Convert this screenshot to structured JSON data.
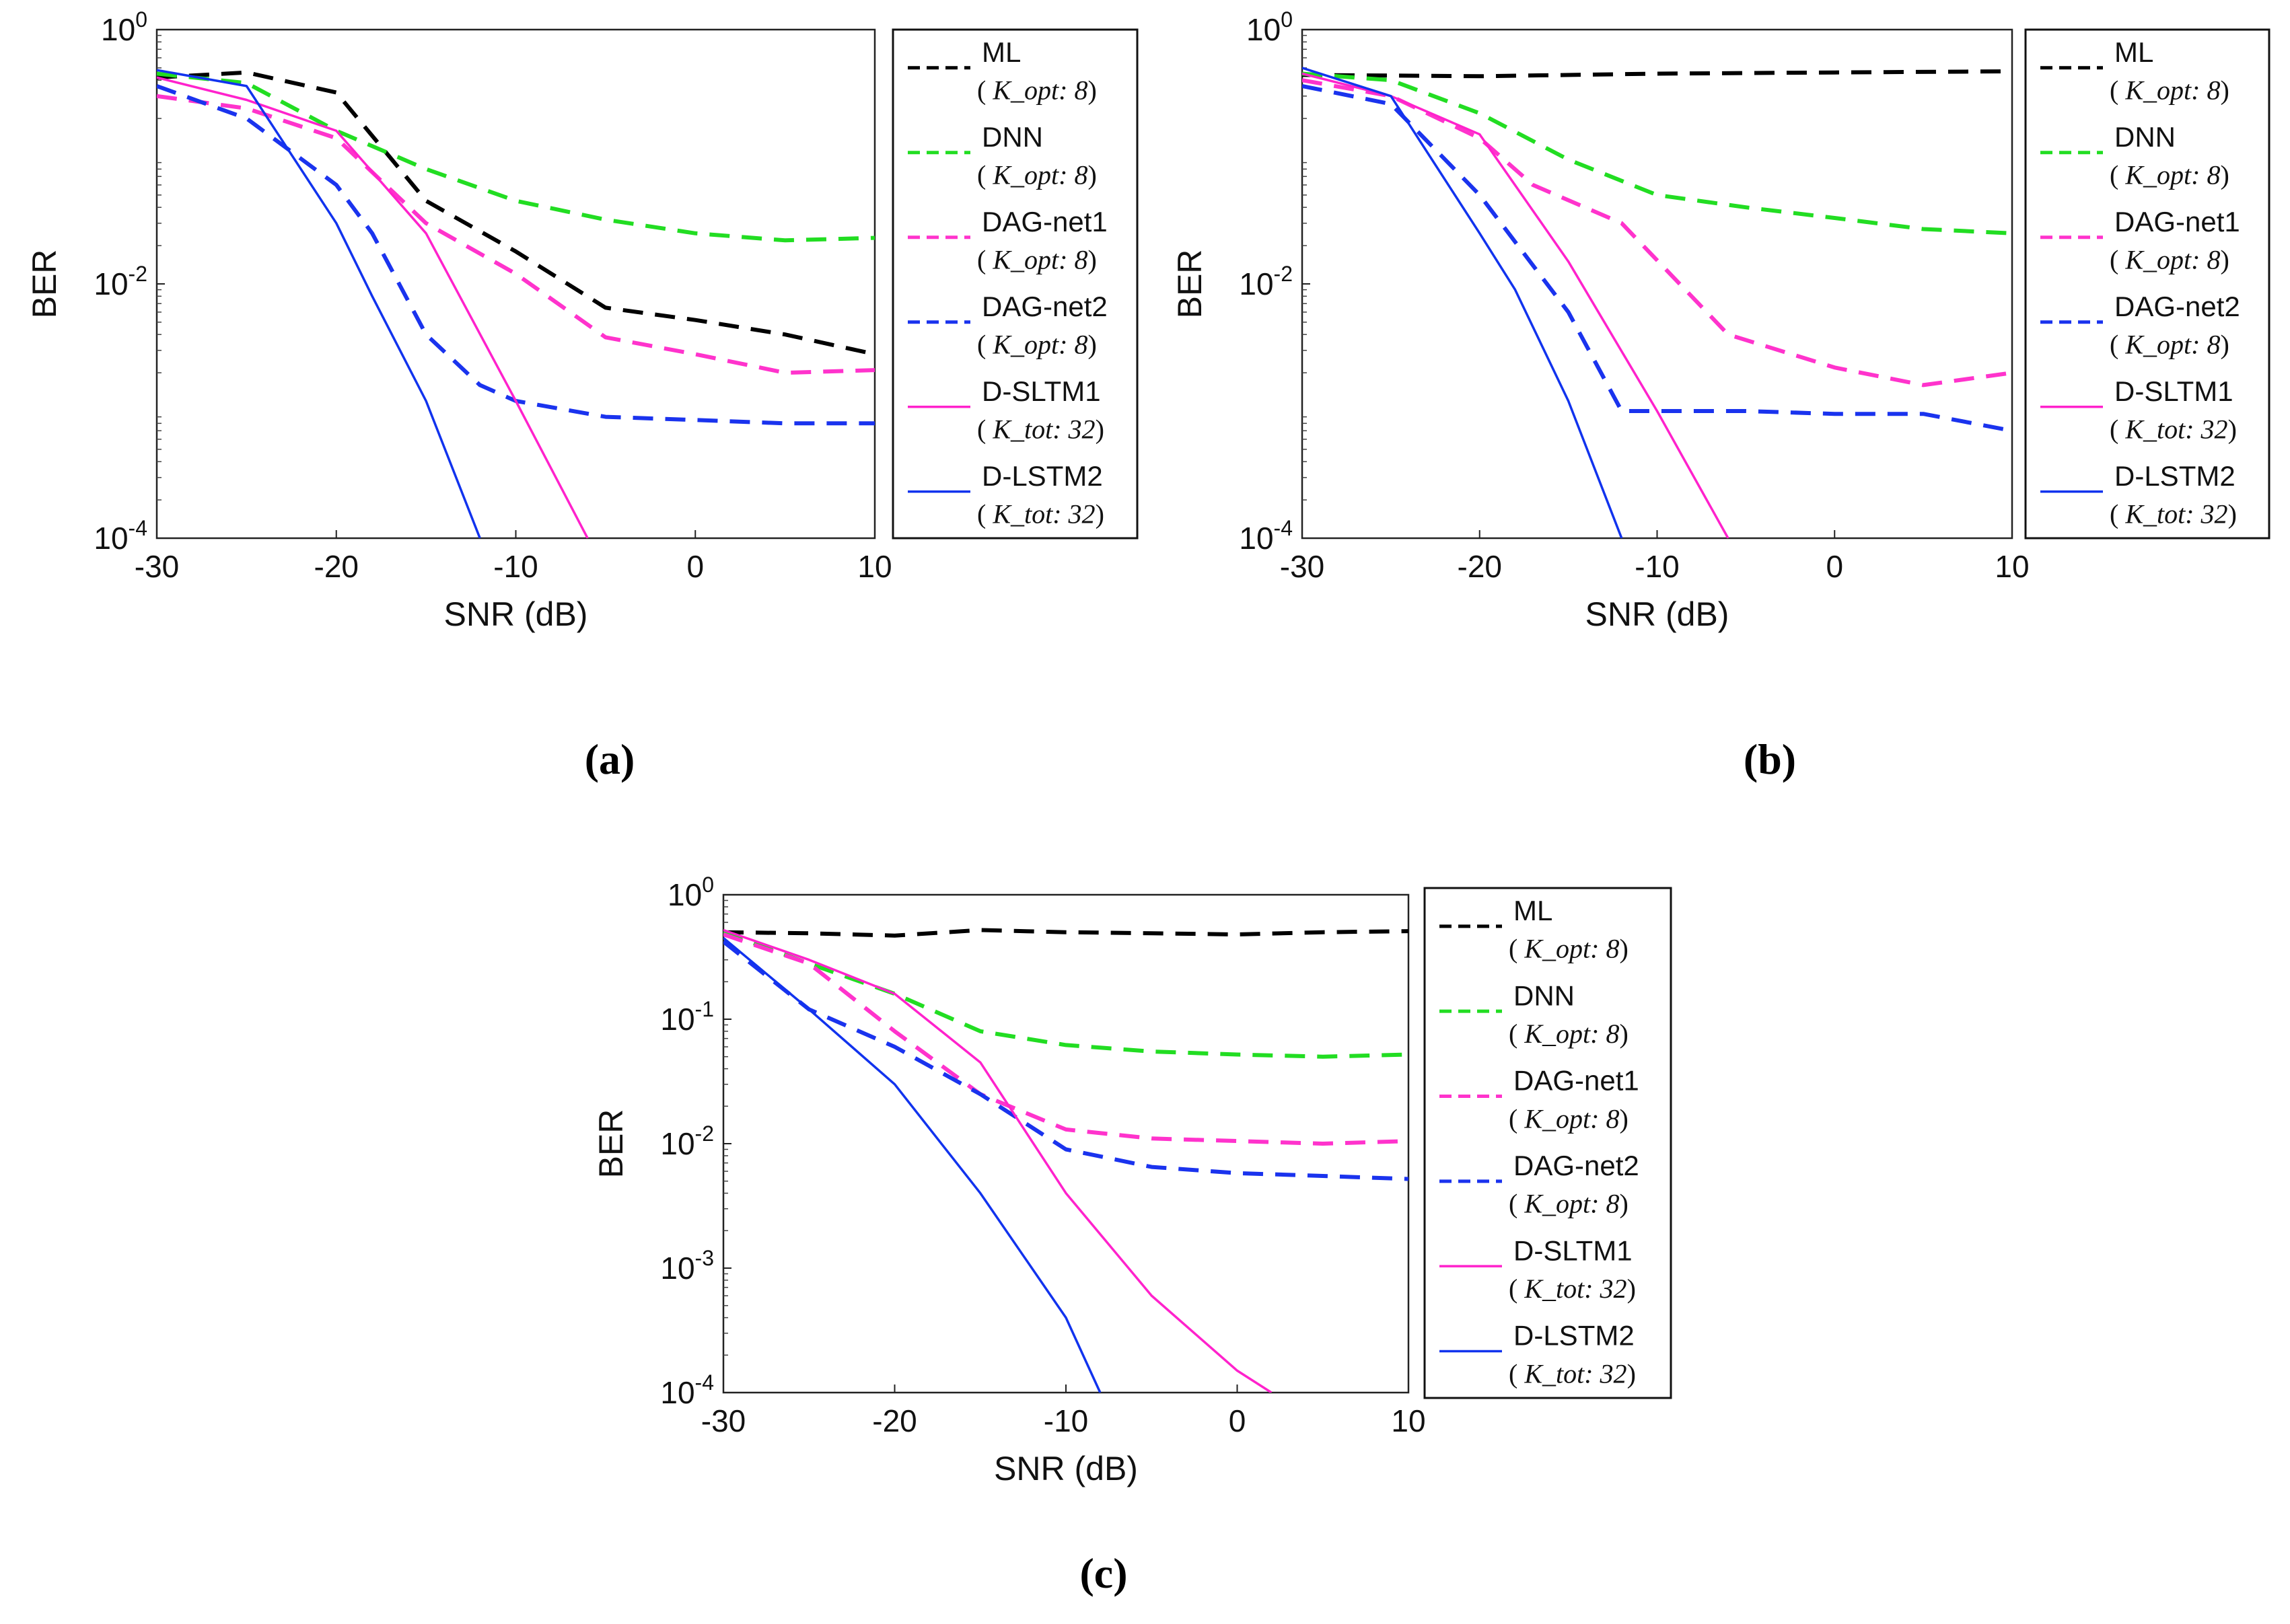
{
  "colors": {
    "ML": "#000000",
    "DNN": "#22dd22",
    "DAG-net1": "#ff33cc",
    "DAG-net2": "#1a33ee",
    "D-SLTM1": "#ff22cc",
    "D-LSTM2": "#1133ee"
  },
  "chart_data": [
    {
      "type": "line",
      "panel_label": "(a)",
      "xlabel": "SNR (dB)",
      "ylabel": "BER",
      "xlim": [
        -30,
        10
      ],
      "ylim": [
        0.0001,
        1
      ],
      "yscale": "log",
      "x_ticks": [
        "-30",
        "-20",
        "-10",
        "0",
        "10"
      ],
      "y_ticks": [
        {
          "base": "10",
          "exp": "0"
        },
        {
          "base": "10",
          "exp": "-2"
        },
        {
          "base": "10",
          "exp": "-4"
        }
      ],
      "legend_position": "outside-right",
      "series": [
        {
          "name": "ML",
          "param": "K_opt: 8",
          "style": "dashed",
          "x": [
            -30,
            -25,
            -20,
            -15,
            -10,
            -5,
            0,
            5,
            10
          ],
          "y": [
            0.42,
            0.46,
            0.32,
            0.045,
            0.018,
            0.0065,
            0.0052,
            0.004,
            0.0028
          ]
        },
        {
          "name": "DNN",
          "param": "K_opt: 8",
          "style": "dashed",
          "x": [
            -30,
            -25,
            -20,
            -15,
            -10,
            -5,
            0,
            5,
            10
          ],
          "y": [
            0.45,
            0.38,
            0.16,
            0.08,
            0.045,
            0.032,
            0.025,
            0.022,
            0.023
          ]
        },
        {
          "name": "DAG-net1",
          "param": "K_opt: 8",
          "style": "dashed",
          "x": [
            -30,
            -25,
            -20,
            -15,
            -10,
            -5,
            0,
            5,
            10
          ],
          "y": [
            0.3,
            0.24,
            0.14,
            0.03,
            0.012,
            0.0038,
            0.0028,
            0.002,
            0.0021
          ]
        },
        {
          "name": "DAG-net2",
          "param": "K_opt: 8",
          "style": "dashed",
          "x": [
            -30,
            -25,
            -20,
            -18,
            -15,
            -12,
            -10,
            -5,
            0,
            5,
            10
          ],
          "y": [
            0.36,
            0.2,
            0.06,
            0.025,
            0.004,
            0.0016,
            0.0012,
            0.0009,
            0.00085,
            0.0008,
            0.0008
          ]
        },
        {
          "name": "D-SLTM1",
          "param": "K_tot: 32",
          "style": "solid",
          "x": [
            -30,
            -25,
            -20,
            -15,
            -10,
            -6
          ],
          "y": [
            0.42,
            0.28,
            0.16,
            0.025,
            0.0012,
            0.0001
          ]
        },
        {
          "name": "D-LSTM2",
          "param": "K_tot: 32",
          "style": "solid",
          "x": [
            -30,
            -25,
            -20,
            -18,
            -15,
            -12
          ],
          "y": [
            0.48,
            0.36,
            0.03,
            0.008,
            0.0012,
            0.0001
          ]
        }
      ]
    },
    {
      "type": "line",
      "panel_label": "(b)",
      "xlabel": "SNR (dB)",
      "ylabel": "BER",
      "xlim": [
        -30,
        10
      ],
      "ylim": [
        0.0001,
        1
      ],
      "yscale": "log",
      "x_ticks": [
        "-30",
        "-20",
        "-10",
        "0",
        "10"
      ],
      "y_ticks": [
        {
          "base": "10",
          "exp": "0"
        },
        {
          "base": "10",
          "exp": "-2"
        },
        {
          "base": "10",
          "exp": "-4"
        }
      ],
      "legend_position": "outside-right",
      "series": [
        {
          "name": "ML",
          "param": "K_opt: 8",
          "style": "dashed",
          "x": [
            -30,
            -20,
            -10,
            0,
            10
          ],
          "y": [
            0.44,
            0.43,
            0.45,
            0.46,
            0.47
          ]
        },
        {
          "name": "DNN",
          "param": "K_opt: 8",
          "style": "dashed",
          "x": [
            -30,
            -25,
            -20,
            -15,
            -10,
            -5,
            0,
            5,
            10
          ],
          "y": [
            0.45,
            0.4,
            0.22,
            0.095,
            0.05,
            0.04,
            0.033,
            0.027,
            0.025
          ]
        },
        {
          "name": "DAG-net1",
          "param": "K_opt: 8",
          "style": "dashed",
          "x": [
            -30,
            -25,
            -20,
            -17,
            -12,
            -6,
            0,
            5,
            10
          ],
          "y": [
            0.4,
            0.3,
            0.14,
            0.06,
            0.03,
            0.004,
            0.0022,
            0.0016,
            0.002
          ]
        },
        {
          "name": "DAG-net2",
          "param": "K_opt: 8",
          "style": "dashed",
          "x": [
            -30,
            -25,
            -20,
            -15,
            -12,
            -10,
            -5,
            0,
            5,
            10
          ],
          "y": [
            0.36,
            0.26,
            0.05,
            0.006,
            0.001,
            0.001,
            0.001,
            0.00095,
            0.00095,
            0.0007
          ]
        },
        {
          "name": "D-SLTM1",
          "param": "K_tot: 32",
          "style": "solid",
          "x": [
            -30,
            -25,
            -20,
            -15,
            -10,
            -6
          ],
          "y": [
            0.45,
            0.3,
            0.15,
            0.015,
            0.001,
            0.0001
          ]
        },
        {
          "name": "D-LSTM2",
          "param": "K_tot: 32",
          "style": "solid",
          "x": [
            -30,
            -25,
            -20,
            -18,
            -15,
            -12
          ],
          "y": [
            0.5,
            0.3,
            0.025,
            0.009,
            0.0012,
            0.0001
          ]
        }
      ]
    },
    {
      "type": "line",
      "panel_label": "(c)",
      "xlabel": "SNR (dB)",
      "ylabel": "BER",
      "xlim": [
        -30,
        10
      ],
      "ylim": [
        0.0001,
        1
      ],
      "yscale": "log",
      "x_ticks": [
        "-30",
        "-20",
        "-10",
        "0",
        "10"
      ],
      "y_ticks": [
        {
          "base": "10",
          "exp": "0"
        },
        {
          "base": "10",
          "exp": "-1"
        },
        {
          "base": "10",
          "exp": "-2"
        },
        {
          "base": "10",
          "exp": "-3"
        },
        {
          "base": "10",
          "exp": "-4"
        }
      ],
      "legend_position": "outside-right",
      "series": [
        {
          "name": "ML",
          "param": "K_opt: 8",
          "style": "dashed",
          "x": [
            -30,
            -25,
            -20,
            -15,
            -10,
            -5,
            0,
            5,
            10
          ],
          "y": [
            0.5,
            0.49,
            0.47,
            0.52,
            0.5,
            0.49,
            0.48,
            0.5,
            0.51
          ]
        },
        {
          "name": "DNN",
          "param": "K_opt: 8",
          "style": "dashed",
          "x": [
            -30,
            -25,
            -20,
            -15,
            -10,
            -5,
            0,
            5,
            10
          ],
          "y": [
            0.5,
            0.28,
            0.16,
            0.08,
            0.062,
            0.055,
            0.052,
            0.05,
            0.052
          ]
        },
        {
          "name": "DAG-net1",
          "param": "K_opt: 8",
          "style": "dashed",
          "x": [
            -30,
            -25,
            -20,
            -15,
            -10,
            -5,
            0,
            5,
            10
          ],
          "y": [
            0.48,
            0.28,
            0.08,
            0.025,
            0.013,
            0.011,
            0.0105,
            0.01,
            0.0105
          ]
        },
        {
          "name": "DAG-net2",
          "param": "K_opt: 8",
          "style": "dashed",
          "x": [
            -30,
            -25,
            -20,
            -15,
            -10,
            -5,
            0,
            5,
            10
          ],
          "y": [
            0.42,
            0.12,
            0.06,
            0.025,
            0.009,
            0.0065,
            0.0058,
            0.0055,
            0.0052
          ]
        },
        {
          "name": "D-SLTM1",
          "param": "K_tot: 32",
          "style": "solid",
          "x": [
            -30,
            -25,
            -20,
            -15,
            -10,
            -5,
            0,
            2
          ],
          "y": [
            0.52,
            0.3,
            0.16,
            0.045,
            0.004,
            0.0006,
            0.00015,
            0.0001
          ]
        },
        {
          "name": "D-LSTM2",
          "param": "K_tot: 32",
          "style": "solid",
          "x": [
            -30,
            -25,
            -20,
            -15,
            -10,
            -8
          ],
          "y": [
            0.45,
            0.12,
            0.03,
            0.004,
            0.0004,
            0.0001
          ]
        }
      ]
    }
  ]
}
